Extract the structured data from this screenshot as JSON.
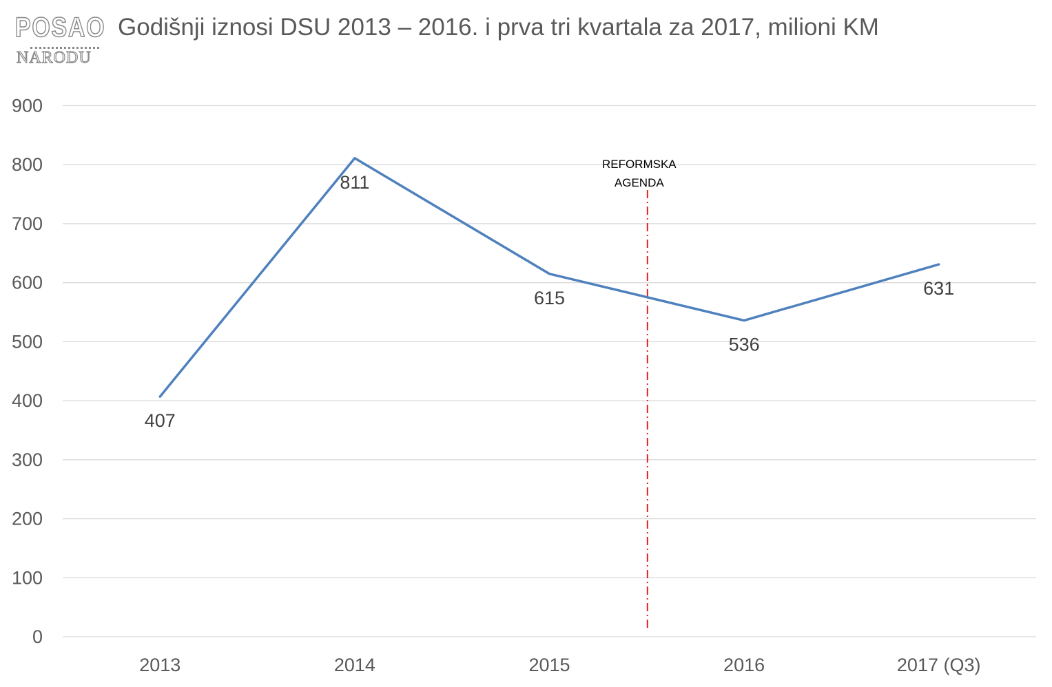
{
  "logo": {
    "line1": "POSAO",
    "line2": "NARODU"
  },
  "colors": {
    "series": "#4f81bd",
    "annotation_line": "#e02020",
    "gridline": "#d9d9d9",
    "tick_text": "#595959",
    "label_text": "#404040"
  },
  "chart_data": {
    "type": "line",
    "title": "Godišnji iznosi DSU 2013 – 2016. i prva tri kvartala za 2017, milioni KM",
    "xlabel": "",
    "ylabel": "",
    "categories": [
      "2013",
      "2014",
      "2015",
      "2016",
      "2017 (Q3)"
    ],
    "series": [
      {
        "values": [
          407,
          811,
          615,
          536,
          631
        ],
        "data_labels": [
          "407",
          "811",
          "615",
          "536",
          "631"
        ]
      }
    ],
    "ylim": [
      0,
      900
    ],
    "yticks": [
      0,
      100,
      200,
      300,
      400,
      500,
      600,
      700,
      800,
      900
    ],
    "grid": true,
    "legend": "none",
    "annotation": {
      "text_line1": "REFORMSKA",
      "text_line2": "AGENDA",
      "position": "between 2015 and 2016",
      "style": "dash-dot vertical line"
    }
  }
}
